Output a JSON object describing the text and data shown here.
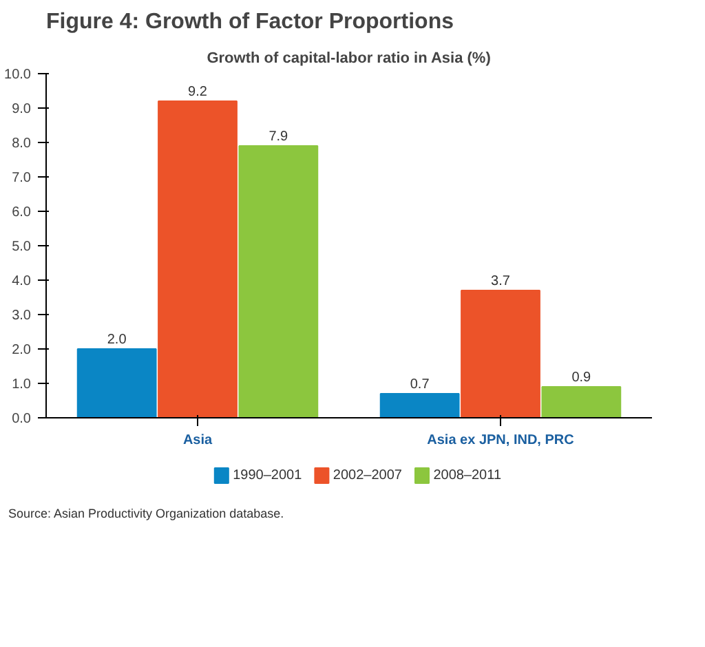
{
  "chart_data": {
    "type": "bar",
    "title": "Figure 4: Growth of Factor Proportions",
    "subtitle": "Growth of capital-labor ratio in Asia (%)",
    "categories": [
      "Asia",
      "Asia ex JPN, IND, PRC"
    ],
    "series": [
      {
        "name": "1990–2001",
        "color": "#0a86c5",
        "values": [
          2.0,
          0.7
        ],
        "value_labels": [
          "2.0",
          "0.7"
        ]
      },
      {
        "name": "2002–2007",
        "color": "#ec5329",
        "values": [
          9.2,
          3.7
        ],
        "value_labels": [
          "9.2",
          "3.7"
        ]
      },
      {
        "name": "2008–2011",
        "color": "#8cc63e",
        "values": [
          7.9,
          0.9
        ],
        "value_labels": [
          "7.9",
          "0.9"
        ]
      }
    ],
    "ylim": [
      0,
      10
    ],
    "yticks": [
      {
        "value": 0,
        "label": "0.0"
      },
      {
        "value": 1,
        "label": "1.0"
      },
      {
        "value": 2,
        "label": "2.0"
      },
      {
        "value": 3,
        "label": "3.0"
      },
      {
        "value": 4,
        "label": "4.0"
      },
      {
        "value": 5,
        "label": "5.0"
      },
      {
        "value": 6,
        "label": "6.0"
      },
      {
        "value": 7,
        "label": "7.0"
      },
      {
        "value": 8,
        "label": "8.0"
      },
      {
        "value": 9,
        "label": "9.0"
      },
      {
        "value": 10,
        "label": "10.0"
      }
    ],
    "legend": "bottom",
    "annotations": [
      "Source: Asian Productivity Organization database."
    ]
  }
}
